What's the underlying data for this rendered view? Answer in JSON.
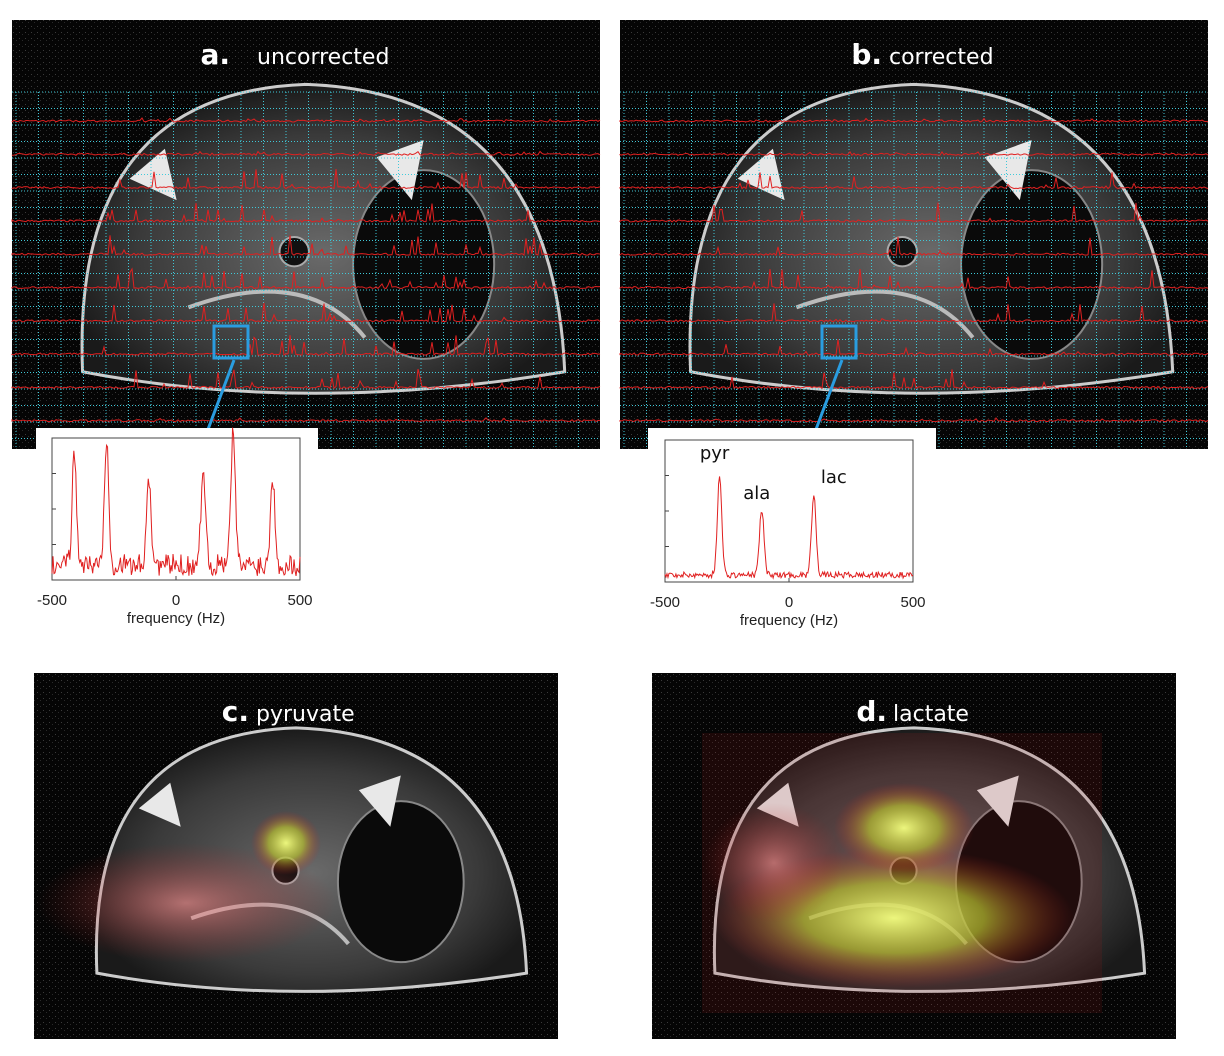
{
  "panels": [
    {
      "letter": "a.",
      "label": "uncorrected"
    },
    {
      "letter": "b.",
      "label": "corrected"
    },
    {
      "letter": "c.",
      "label": "pyruvate"
    },
    {
      "letter": "d.",
      "label": "lactate"
    }
  ],
  "insets": [
    {
      "xlim": [
        -500,
        500
      ],
      "xticks": [
        -500,
        0,
        500
      ],
      "xlabel": "frequency (Hz)"
    },
    {
      "xlim": [
        -500,
        500
      ],
      "xticks": [
        -500,
        0,
        500
      ],
      "xlabel": "frequency (Hz)",
      "peaks": [
        "pyr",
        "ala",
        "lac"
      ]
    }
  ]
}
